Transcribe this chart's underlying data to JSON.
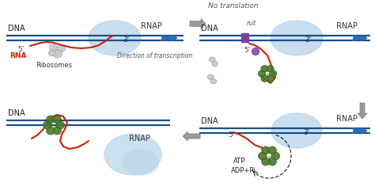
{
  "bg_color": "#ffffff",
  "dna_color": "#1a4f8a",
  "rna_color": "#cc2200",
  "bubble_color": "#b8d4ea",
  "rnap_label": "RNAP",
  "dna_label": "DNA",
  "green1": "#4a7a2a",
  "green2": "#3a6020",
  "brown1": "#8B4513",
  "arrow_color": "#2a6ab0",
  "gray_color": "#999999",
  "gray_dark": "#777777",
  "rib_color": "#c8c8c8",
  "rib_edge": "#909090",
  "rut_color": "#7b3fa0",
  "no_translation": "No translation",
  "rut_text": "rut",
  "atp_text": "ATP",
  "adp_text": "ADP+Pi",
  "direction_text": "Direction of transcription",
  "five_prime": "5'",
  "three_prime": "3'",
  "ribosome_label": "Ribosomes",
  "rna_label": "RNA"
}
